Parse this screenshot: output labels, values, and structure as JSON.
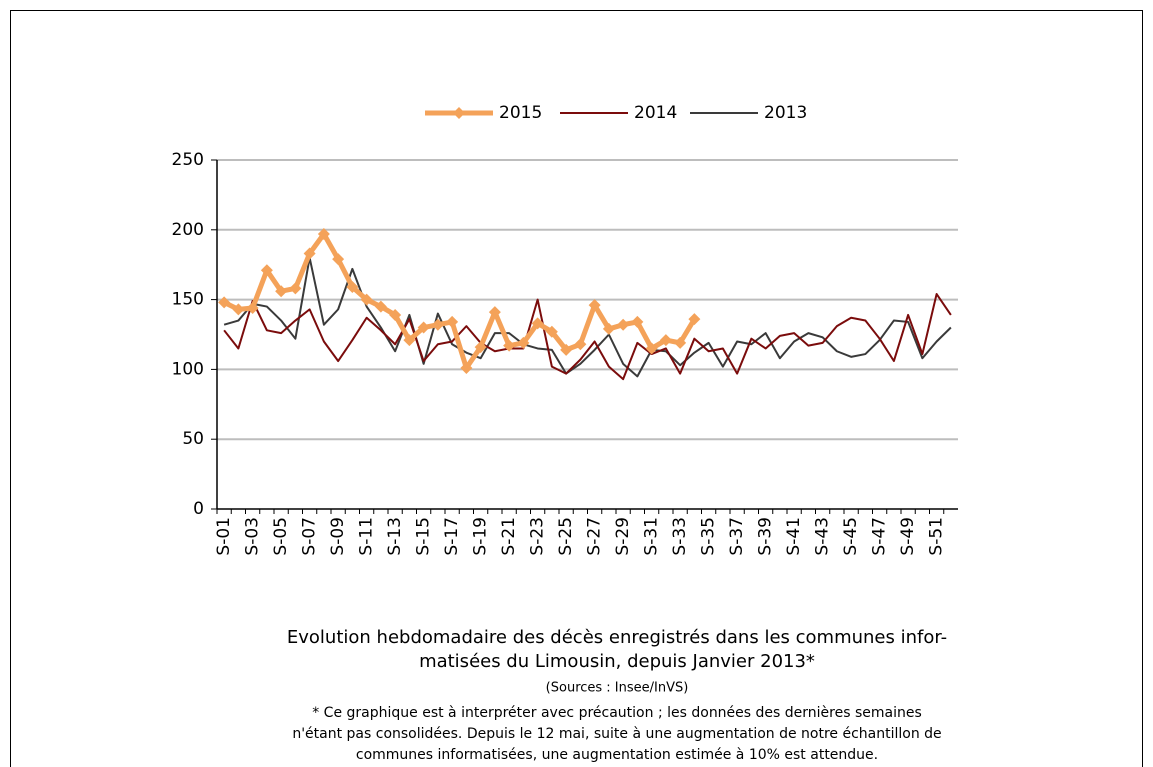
{
  "chart_data": {
    "type": "line",
    "categories": [
      "S-01",
      null,
      "S-03",
      null,
      "S-05",
      null,
      "S-07",
      null,
      "S-09",
      null,
      "S-11",
      null,
      "S-13",
      null,
      "S-15",
      null,
      "S-17",
      null,
      "S-19",
      null,
      "S-21",
      null,
      "S-23",
      null,
      "S-25",
      null,
      "S-27",
      null,
      "S-29",
      null,
      "S-31",
      null,
      "S-33",
      null,
      "S-35",
      null,
      "S-37",
      null,
      "S-39",
      null,
      "S-41",
      null,
      "S-43",
      null,
      "S-45",
      null,
      "S-47",
      null,
      "S-49",
      null,
      "S-51",
      null
    ],
    "series": [
      {
        "name": "2015",
        "color": "#f4a259",
        "marker": "diamond",
        "values": [
          148,
          143,
          144,
          171,
          156,
          158,
          183,
          197,
          179,
          159,
          150,
          145,
          139,
          121,
          130,
          132,
          134,
          101,
          116,
          141,
          117,
          119,
          133,
          127,
          114,
          118,
          146,
          129,
          132,
          134,
          115,
          121,
          119,
          136,
          null,
          null,
          null,
          null,
          null,
          null,
          null,
          null,
          null,
          null,
          null,
          null,
          null,
          null,
          null,
          null,
          null,
          null
        ]
      },
      {
        "name": "2014",
        "color": "#7b0c0c",
        "values": [
          128,
          115,
          149,
          128,
          126,
          135,
          143,
          120,
          106,
          121,
          137,
          128,
          118,
          136,
          106,
          118,
          120,
          131,
          119,
          113,
          115,
          115,
          150,
          102,
          97,
          107,
          120,
          102,
          93,
          119,
          111,
          115,
          97,
          122,
          113,
          115,
          97,
          122,
          115,
          124,
          126,
          117,
          119,
          131,
          137,
          135,
          122,
          106,
          139,
          111,
          154,
          139
        ]
      },
      {
        "name": "2013",
        "color": "#3a3a3a",
        "values": [
          132,
          135,
          147,
          145,
          135,
          122,
          180,
          132,
          143,
          172,
          145,
          130,
          113,
          139,
          104,
          140,
          118,
          112,
          108,
          126,
          126,
          118,
          115,
          114,
          97,
          104,
          114,
          125,
          104,
          95,
          114,
          113,
          103,
          112,
          119,
          102,
          120,
          118,
          126,
          108,
          120,
          126,
          123,
          113,
          109,
          111,
          121,
          135,
          134,
          108,
          120,
          130
        ]
      }
    ],
    "ylim": [
      0,
      250
    ],
    "yticks": [
      0,
      50,
      100,
      150,
      200,
      250
    ],
    "grid": true,
    "legend": "top",
    "caption": [
      "Evolution hebdomadaire des décès enregistrés dans les communes infor-",
      "matisées du Limousin, depuis Janvier  2013*"
    ],
    "source": "(Sources : Insee/InVS)",
    "note": [
      "* Ce graphique est à interpréter avec précaution ; les données des dernières semaines",
      "n'étant pas consolidées. Depuis le 12 mai, suite à une augmentation de notre échantillon de",
      "communes informatisées, une augmentation estimée à 10% est attendue."
    ]
  }
}
